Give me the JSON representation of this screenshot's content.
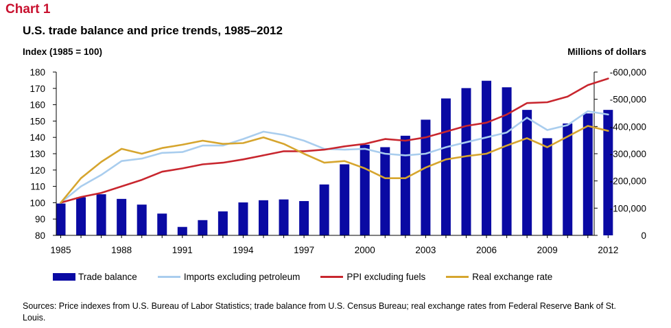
{
  "chart_label": "Chart 1",
  "chart_title": "U.S. trade balance and price trends, 1985–2012",
  "left_axis_title": "Index (1985 = 100)",
  "right_axis_title": "Millions of dollars",
  "source": "Sources: Price indexes from U.S. Bureau of Labor Statistics; trade balance from U.S. Census Bureau; real exchange rates from Federal Reserve Bank of St. Louis.",
  "colors": {
    "trade_balance": "#0a0aa3",
    "imports": "#a9cdee",
    "ppi": "#c8262e",
    "exchange": "#d6a52e"
  },
  "chart_data": {
    "type": "bar+line",
    "x": [
      1985,
      1986,
      1987,
      1988,
      1989,
      1990,
      1991,
      1992,
      1993,
      1994,
      1995,
      1996,
      1997,
      1998,
      1999,
      2000,
      2001,
      2002,
      2003,
      2004,
      2005,
      2006,
      2007,
      2008,
      2009,
      2010,
      2011,
      2012
    ],
    "x_tick_labels": [
      "1985",
      "1988",
      "1991",
      "1994",
      "1997",
      "2000",
      "2003",
      "2006",
      "2009",
      "2012"
    ],
    "left_axis": {
      "label": "Index (1985 = 100)",
      "min": 80,
      "max": 180,
      "step": 10,
      "ticks": [
        "180",
        "170",
        "160",
        "150",
        "140",
        "130",
        "120",
        "110",
        "100",
        "90",
        "80"
      ]
    },
    "right_axis": {
      "label": "Millions of dollars",
      "min": 0,
      "max": -600000,
      "step": -100000,
      "ticks": [
        "-600,000",
        "-500,000",
        "-400,000",
        "-300,000",
        "-200,000",
        "-100,000",
        "0"
      ]
    },
    "legend_position": "bottom",
    "grid": false,
    "series": [
      {
        "name": "Trade balance",
        "type": "bar",
        "axis": "right",
        "values": [
          -117000,
          -140000,
          -151000,
          -134000,
          -113000,
          -80000,
          -31000,
          -56000,
          -88000,
          -121000,
          -129000,
          -132000,
          -126000,
          -187000,
          -261000,
          -333000,
          -324000,
          -366000,
          -425000,
          -503000,
          -541000,
          -568000,
          -544000,
          -461000,
          -357000,
          -411000,
          -448000,
          -461000
        ]
      },
      {
        "name": "Imports excluding petroleum",
        "type": "line",
        "axis": "left",
        "values": [
          100,
          110,
          117,
          125.5,
          127,
          130.5,
          131,
          135,
          135,
          139,
          143.5,
          141.5,
          138,
          133,
          132.5,
          133,
          130,
          129,
          130,
          134,
          137,
          140,
          143,
          152,
          144.5,
          147.5,
          156,
          154
        ]
      },
      {
        "name": "PPI excluding fuels",
        "type": "line",
        "axis": "left",
        "values": [
          100,
          103.5,
          106,
          110,
          114,
          119,
          121,
          123.5,
          124.5,
          126.5,
          129,
          131.5,
          131.5,
          132.5,
          134.5,
          136,
          139,
          138,
          140,
          143.5,
          147,
          149,
          154,
          161,
          161.5,
          165,
          172,
          176
        ]
      },
      {
        "name": "Real exchange rate",
        "type": "line",
        "axis": "left",
        "values": [
          100,
          115,
          125,
          133,
          130,
          133.5,
          135.5,
          138,
          136,
          136.5,
          140,
          136,
          130,
          124.5,
          125.5,
          121,
          115,
          115,
          121.5,
          126.5,
          128.5,
          130,
          135,
          139.5,
          134,
          140.5,
          147,
          144
        ]
      }
    ]
  }
}
